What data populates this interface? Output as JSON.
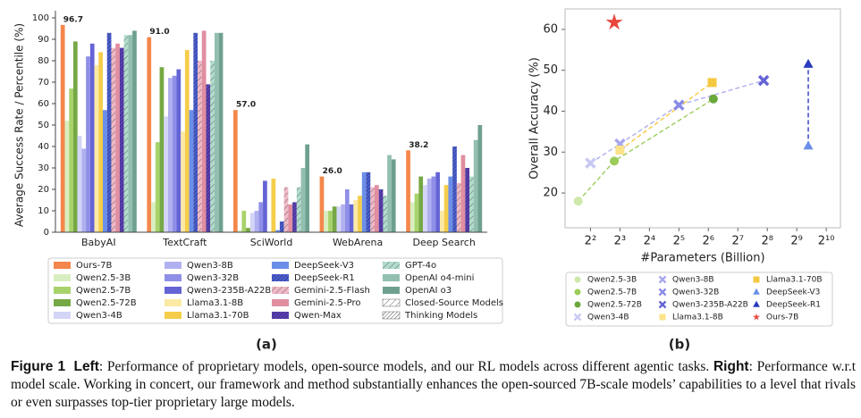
{
  "chart_data": [
    {
      "type": "bar",
      "y_label": "Average Success Rate / Percentile (%)",
      "categories": [
        "BabyAI",
        "TextCraft",
        "SciWorld",
        "WebArena",
        "Deep Search"
      ],
      "ylim": [
        0,
        100
      ],
      "yticks": [
        0,
        10,
        20,
        30,
        40,
        50,
        60,
        70,
        80,
        90,
        100
      ],
      "grid": false,
      "series": [
        {
          "name": "Ours-7B",
          "color": "#f4874b",
          "values": [
            96.7,
            91.0,
            57.0,
            26.0,
            38.2
          ],
          "value_labels": [
            "96.7",
            "91.0",
            "57.0",
            "26.0",
            "38.2"
          ]
        },
        {
          "name": "Qwen2.5-3B",
          "color": "#d9eec0",
          "values": [
            52,
            14,
            1,
            10,
            14
          ]
        },
        {
          "name": "Qwen2.5-7B",
          "color": "#a8d36b",
          "values": [
            67,
            42,
            10,
            10,
            18
          ]
        },
        {
          "name": "Qwen2.5-72B",
          "color": "#76a845",
          "values": [
            89,
            77,
            2,
            12,
            26
          ]
        },
        {
          "name": "Qwen3-4B",
          "color": "#d3d5f6",
          "values": [
            45,
            54,
            9,
            12,
            22
          ]
        },
        {
          "name": "Qwen3-8B",
          "color": "#b0b0f0",
          "values": [
            39,
            72,
            10,
            13,
            25
          ]
        },
        {
          "name": "Qwen3-32B",
          "color": "#8f8fe8",
          "values": [
            82,
            73,
            14,
            20,
            26
          ]
        },
        {
          "name": "Qwen3-235B-A22B",
          "color": "#6464d6",
          "values": [
            88,
            76,
            24,
            13,
            28
          ]
        },
        {
          "name": "Llama3.1-8B",
          "color": "#fbe9a6",
          "values": [
            78,
            47,
            0,
            15,
            10
          ]
        },
        {
          "name": "Llama3.1-70B",
          "color": "#f5cd4a",
          "values": [
            84,
            85,
            25,
            17,
            22
          ]
        },
        {
          "name": "DeepSeek-V3",
          "color": "#6b8fe8",
          "values": [
            57,
            57,
            1,
            28,
            26
          ]
        },
        {
          "name": "DeepSeek-R1",
          "color": "#4a5fd6",
          "hatch": "thinking",
          "values": [
            93,
            93,
            5,
            28,
            40
          ]
        },
        {
          "name": "Gemini-2.5-Flash",
          "color": "#f0b8c6",
          "hatch": "closed",
          "values": [
            86,
            80,
            21,
            21,
            23
          ]
        },
        {
          "name": "Gemini-2.5-Pro",
          "color": "#e08ea0",
          "values": [
            88,
            94,
            13,
            22,
            36
          ]
        },
        {
          "name": "Qwen-Max",
          "color": "#5a3fb8",
          "hatch": "thinking",
          "values": [
            86,
            69,
            14,
            20,
            30
          ]
        },
        {
          "name": "GPT-4o",
          "color": "#b0dccc",
          "hatch": "closed",
          "values": [
            92,
            80,
            21,
            17,
            26
          ]
        },
        {
          "name": "OpenAI o4-mini",
          "color": "#93bfb0",
          "values": [
            92,
            93,
            30,
            36,
            43
          ]
        },
        {
          "name": "OpenAI o3",
          "color": "#6ea090",
          "values": [
            94,
            93,
            41,
            34,
            50
          ]
        }
      ],
      "pattern_legend": [
        {
          "name": "Closed-Source Models",
          "hatch": "closed"
        },
        {
          "name": "Thinking Models",
          "hatch": "thinking"
        }
      ]
    },
    {
      "type": "scatter",
      "x_label": "#Parameters (Billion)",
      "y_label": "Overall Accuracy (%)",
      "xscale": "log",
      "xlim": [
        2.2,
        1430
      ],
      "xticks": [
        {
          "value": 4,
          "label": "2²"
        },
        {
          "value": 8,
          "label": "2³"
        },
        {
          "value": 16,
          "label": "2⁴"
        },
        {
          "value": 32,
          "label": "2⁵"
        },
        {
          "value": 64,
          "label": "2⁶"
        },
        {
          "value": 128,
          "label": "2⁷"
        },
        {
          "value": 256,
          "label": "2⁸"
        },
        {
          "value": 512,
          "label": "2⁹"
        },
        {
          "value": 1024,
          "label": "2¹⁰"
        }
      ],
      "ylim": [
        11.5,
        65
      ],
      "yticks": [
        20,
        30,
        40,
        50,
        60
      ],
      "series": [
        {
          "name": "Qwen2.5-3B",
          "color": "#cde8a8",
          "marker": "circle",
          "line_color": "#9ccc5a",
          "x": [
            3
          ],
          "values": [
            18
          ]
        },
        {
          "name": "Qwen2.5-7B",
          "color": "#9ccc5a",
          "marker": "circle",
          "line_color": "#9ccc5a",
          "x": [
            7
          ],
          "values": [
            27.8
          ]
        },
        {
          "name": "Qwen2.5-72B",
          "color": "#6aa83c",
          "marker": "circle",
          "line_color": "#9ccc5a",
          "x": [
            72
          ],
          "values": [
            43
          ]
        },
        {
          "name": "Qwen3-4B",
          "color": "#c8c8f4",
          "marker": "x",
          "line_color": "#b0b0f0",
          "x": [
            4
          ],
          "values": [
            27.3
          ]
        },
        {
          "name": "Qwen3-8B",
          "color": "#a8a8ee",
          "marker": "x",
          "line_color": "#b0b0f0",
          "x": [
            8
          ],
          "values": [
            32
          ]
        },
        {
          "name": "Qwen3-32B",
          "color": "#8a8ae6",
          "marker": "x",
          "line_color": "#b0b0f0",
          "x": [
            32
          ],
          "values": [
            41.5
          ]
        },
        {
          "name": "Qwen3-235B-A22B",
          "color": "#6464d6",
          "marker": "x",
          "line_color": "#b0b0f0",
          "x": [
            235
          ],
          "values": [
            47.5
          ]
        },
        {
          "name": "Llama3.1-8B",
          "color": "#fbe38a",
          "marker": "square",
          "line_color": "#f5c842",
          "x": [
            8
          ],
          "values": [
            30.5
          ]
        },
        {
          "name": "Llama3.1-70B",
          "color": "#f5c842",
          "marker": "square",
          "line_color": "#f5c842",
          "x": [
            70
          ],
          "values": [
            47
          ]
        },
        {
          "name": "DeepSeek-V3",
          "color": "#6b8fe8",
          "marker": "triangle",
          "line_color": "#2a3ac0",
          "x": [
            671
          ],
          "values": [
            31.5
          ]
        },
        {
          "name": "DeepSeek-R1",
          "color": "#2a3ac0",
          "marker": "triangle",
          "line_color": "#2a3ac0",
          "x": [
            671
          ],
          "values": [
            51.5
          ]
        },
        {
          "name": "Ours-7B",
          "color": "#e8453c",
          "marker": "star",
          "x": [
            7
          ],
          "values": [
            61.7
          ]
        }
      ]
    }
  ],
  "panel_labels": [
    "(a)",
    "(b)"
  ],
  "caption": {
    "label": "Figure 1",
    "left_label": "Left",
    "left_text": ": Performance of proprietary models, open-source models, and our RL models across different agentic tasks.",
    "right_label": "Right",
    "right_text": ": Performance w.r.t model scale. Working in concert, our framework and method substantially enhances the open-sourced 7B-scale models’ capabilities to a level that rivals or even surpasses top-tier proprietary large models."
  }
}
